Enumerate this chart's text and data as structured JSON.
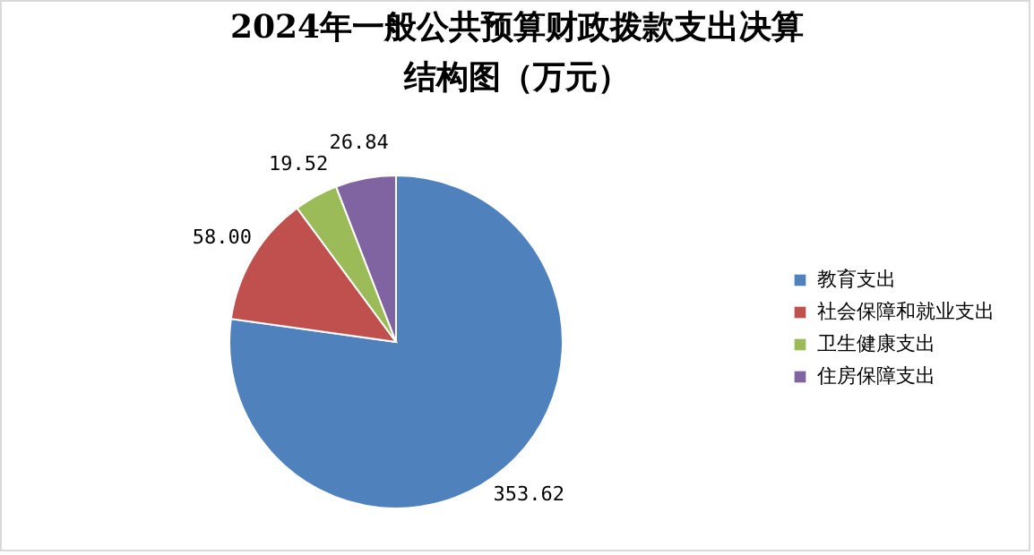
{
  "chart_data": {
    "type": "pie",
    "title": "2024年一般公共预算财政拨款支出决算结构图（万元）",
    "categories": [
      "教育支出",
      "社会保障和就业支出",
      "卫生健康支出",
      "住房保障支出"
    ],
    "values": [
      353.62,
      58.0,
      19.52,
      26.84
    ],
    "value_labels": [
      "353.62",
      "58.00",
      "19.52",
      "26.84"
    ],
    "colors": [
      "#4f81bd",
      "#c0504d",
      "#9bbb59",
      "#8064a2"
    ],
    "legend": "right"
  }
}
